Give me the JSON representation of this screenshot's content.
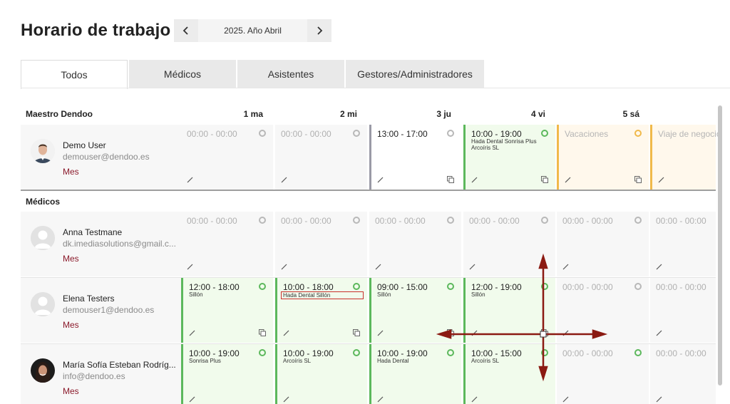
{
  "header": {
    "title": "Horario de trabajo",
    "date_label": "2025. Año Abril",
    "prev_icon": "chevron-left-icon",
    "next_icon": "chevron-right-icon"
  },
  "tabs": [
    {
      "label": "Todos",
      "active": true
    },
    {
      "label": "Médicos",
      "active": false
    },
    {
      "label": "Asistentes",
      "active": false
    },
    {
      "label": "Gestores/Administradores",
      "active": false
    }
  ],
  "grid": {
    "master_label": "Maestro Dendoo",
    "days": [
      "1 ma",
      "2 mi",
      "3 ju",
      "4 vi",
      "5 sá"
    ],
    "section_medicos": "Médicos"
  },
  "rows": [
    {
      "name": "Demo User",
      "email": "demouser@dendoo.es",
      "mes": "Mes",
      "avatar": "photo-male",
      "cells": [
        {
          "time": "00:00 - 00:00",
          "sub": "",
          "style": "empty",
          "status": "gray",
          "copy": false
        },
        {
          "time": "00:00 - 00:00",
          "sub": "",
          "style": "empty",
          "status": "gray",
          "copy": false
        },
        {
          "time": "13:00 - 17:00",
          "sub": "",
          "style": "gray-bar",
          "status": "gray",
          "copy": true
        },
        {
          "time": "10:00 - 19:00",
          "sub": "Hada Dental  Sonrisa Plus  Arcoíris SL",
          "style": "green",
          "status": "green",
          "copy": true
        },
        {
          "time": "Vacaciones",
          "sub": "",
          "style": "orange",
          "status": "orange",
          "copy": true
        },
        {
          "time": "Viaje de negocio",
          "sub": "",
          "style": "orange",
          "status": "none",
          "copy": false
        }
      ]
    },
    {
      "name": "Anna Testmane",
      "email": "dk.imediasolutions@gmail.c...",
      "mes": "Mes",
      "avatar": "placeholder",
      "cells": [
        {
          "time": "00:00 - 00:00",
          "sub": "",
          "style": "empty",
          "status": "gray",
          "copy": false
        },
        {
          "time": "00:00 - 00:00",
          "sub": "",
          "style": "empty",
          "status": "gray",
          "copy": false
        },
        {
          "time": "00:00 - 00:00",
          "sub": "",
          "style": "empty",
          "status": "gray",
          "copy": false
        },
        {
          "time": "00:00 - 00:00",
          "sub": "",
          "style": "empty",
          "status": "gray",
          "copy": false
        },
        {
          "time": "00:00 - 00:00",
          "sub": "",
          "style": "empty",
          "status": "gray",
          "copy": false
        },
        {
          "time": "00:00 - 00:00",
          "sub": "",
          "style": "empty",
          "status": "none",
          "copy": false
        }
      ]
    },
    {
      "name": "Elena Testers",
      "email": "demouser1@dendoo.es",
      "mes": "Mes",
      "avatar": "placeholder",
      "cells": [
        {
          "time": "12:00 - 18:00",
          "sub": "Sillón",
          "style": "green",
          "status": "green",
          "copy": true
        },
        {
          "time": "10:00 - 18:00",
          "sub": "Hada Dental  Sillón",
          "style": "green",
          "status": "green",
          "copy": true,
          "boxed": true
        },
        {
          "time": "09:00 - 15:00",
          "sub": "Sillón",
          "style": "green",
          "status": "green",
          "copy": true
        },
        {
          "time": "12:00 - 19:00",
          "sub": "Sillón",
          "style": "green",
          "status": "green",
          "copy": true
        },
        {
          "time": "00:00 - 00:00",
          "sub": "",
          "style": "empty",
          "status": "gray",
          "copy": false
        },
        {
          "time": "00:00 - 00:00",
          "sub": "",
          "style": "empty",
          "status": "none",
          "copy": false
        }
      ]
    },
    {
      "name": "María Sofía Esteban Rodríg...",
      "email": "info@dendoo.es",
      "mes": "Mes",
      "avatar": "photo-female",
      "cells": [
        {
          "time": "10:00 - 19:00",
          "sub": "Sonrisa Plus",
          "style": "green",
          "status": "green",
          "copy": false
        },
        {
          "time": "10:00 - 19:00",
          "sub": "Arcoíris SL",
          "style": "green",
          "status": "green",
          "copy": false
        },
        {
          "time": "10:00 - 19:00",
          "sub": "Hada Dental",
          "style": "green",
          "status": "green",
          "copy": false
        },
        {
          "time": "10:00 - 15:00",
          "sub": "Arcoíris SL",
          "style": "green",
          "status": "green",
          "copy": false
        },
        {
          "time": "00:00 - 00:00",
          "sub": "",
          "style": "empty",
          "status": "green",
          "copy": false
        },
        {
          "time": "00:00 - 00:00",
          "sub": "",
          "style": "empty",
          "status": "none",
          "copy": false
        }
      ]
    }
  ],
  "colors": {
    "accent_green": "#5cb85c",
    "accent_orange": "#f0b94a",
    "mes_link": "#8b1a2b",
    "cursor": "#8b1a12"
  },
  "cursor_icon": "move-cursor-icon"
}
